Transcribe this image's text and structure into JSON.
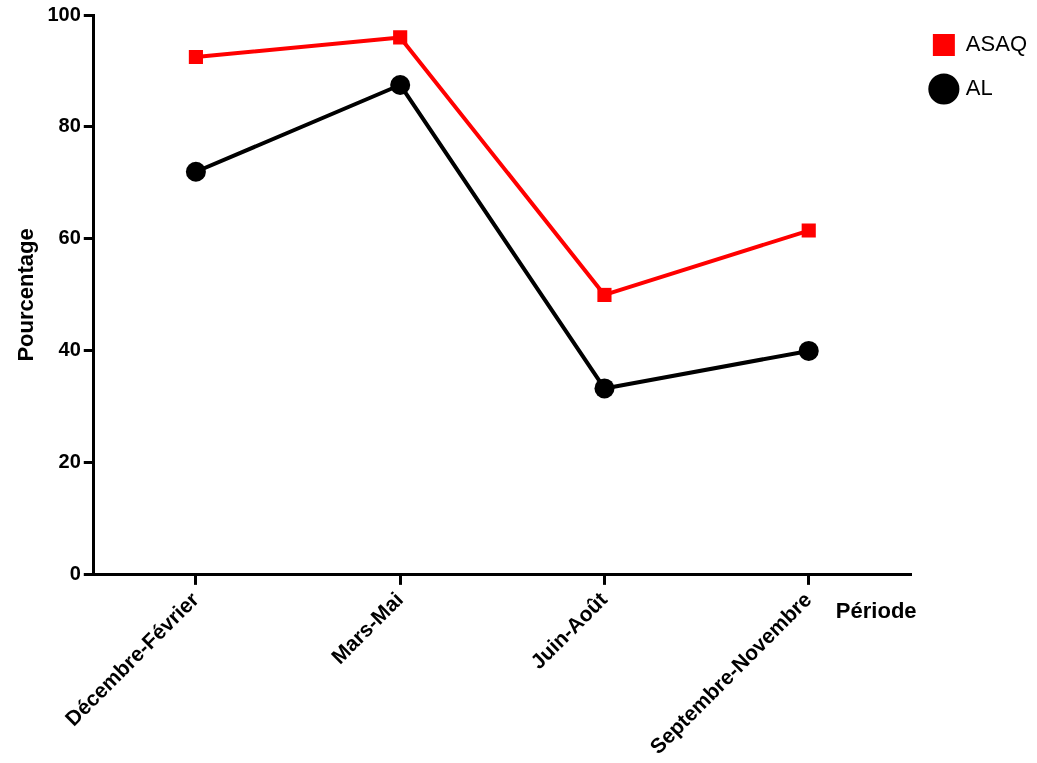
{
  "chart_data": {
    "type": "line",
    "xlabel": "Période",
    "ylabel": "Pourcentage",
    "categories": [
      "Décembre-Février",
      "Mars-Mai",
      "Juin-Août",
      "Septembre-Novembre"
    ],
    "series": [
      {
        "name": "ASAQ",
        "color": "#ff0000",
        "marker": "square",
        "values": [
          92.5,
          96,
          50,
          61.5
        ]
      },
      {
        "name": "AL",
        "color": "#000000",
        "marker": "circle",
        "values": [
          72,
          87.5,
          33.3,
          40
        ]
      }
    ],
    "ylim": [
      0,
      100
    ],
    "yticks": [
      0,
      20,
      40,
      60,
      80,
      100
    ],
    "grid": false,
    "legend": "top right",
    "line_style": "solid"
  }
}
